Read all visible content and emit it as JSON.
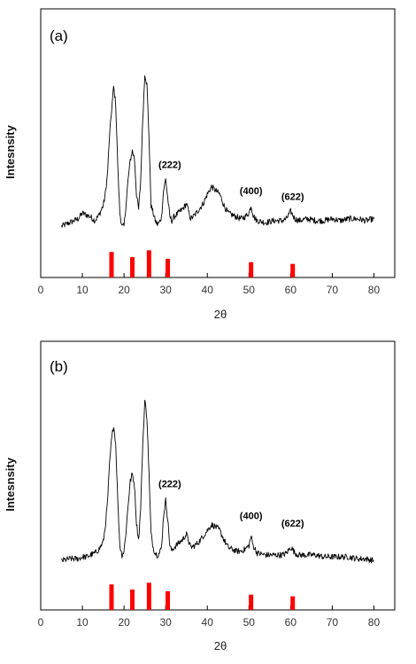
{
  "colors": {
    "trace": "#000000",
    "reference_bar": "#ff0000",
    "axis": "#000000",
    "background": "#ffffff"
  },
  "chart_data": [
    {
      "type": "line",
      "panel_label": "(a)",
      "xlabel": "2θ",
      "ylabel": "Intesnsity",
      "xlim": [
        0,
        85
      ],
      "ylim": [
        0,
        100
      ],
      "x_ticks": [
        0,
        10,
        20,
        30,
        40,
        50,
        60,
        70,
        80
      ],
      "y_ticks_shown": false,
      "grid": false,
      "series": [
        {
          "x": [
            5,
            7,
            9,
            10,
            11,
            12,
            13,
            14,
            15,
            15.5,
            16,
            16.5,
            17,
            17.5,
            18,
            18.5,
            19,
            19.5,
            20,
            20.5,
            21,
            21.5,
            22,
            22.5,
            23,
            23.5,
            24,
            24.5,
            25,
            25.5,
            26,
            26.5,
            27,
            27.5,
            28,
            28.5,
            29,
            29.5,
            30,
            30.5,
            31,
            31.5,
            32,
            33,
            34,
            35,
            36,
            37,
            38,
            39,
            40,
            41,
            42,
            43,
            44,
            45,
            46,
            47,
            48,
            49,
            50,
            50.5,
            51,
            51.5,
            52,
            54,
            56,
            58,
            59,
            60,
            60.5,
            61,
            62,
            64,
            66,
            68,
            70,
            72,
            74,
            76,
            78,
            80
          ],
          "values": [
            13,
            15,
            17,
            20,
            19,
            18,
            16,
            19,
            24,
            30,
            40,
            60,
            74,
            87,
            78,
            45,
            20,
            13,
            13,
            25,
            38,
            48,
            53,
            49,
            30,
            22,
            37,
            70,
            94,
            88,
            60,
            24,
            20,
            16,
            14,
            15,
            18,
            32,
            38,
            28,
            18,
            16,
            18,
            20,
            22,
            25,
            17,
            19,
            22,
            25,
            30,
            34,
            32,
            30,
            24,
            20,
            19,
            18,
            17,
            18,
            20,
            24,
            19,
            17,
            16,
            15,
            16,
            16,
            17,
            21,
            19,
            17,
            16,
            17,
            16,
            16,
            17,
            16,
            17,
            17,
            16,
            17
          ]
        }
      ],
      "reference_peaks": [
        {
          "x": 17,
          "height": 15
        },
        {
          "x": 22,
          "height": 12
        },
        {
          "x": 26,
          "height": 16
        },
        {
          "x": 30.5,
          "height": 11
        },
        {
          "x": 50.5,
          "height": 9
        },
        {
          "x": 60.5,
          "height": 8
        }
      ],
      "annotations": [
        {
          "text": "(222)",
          "x": 31,
          "y": 44
        },
        {
          "text": "(400)",
          "x": 50.5,
          "y": 30
        },
        {
          "text": "(622)",
          "x": 60.5,
          "y": 27
        }
      ]
    },
    {
      "type": "line",
      "panel_label": "(b)",
      "xlabel": "2θ",
      "ylabel": "Intesnsity",
      "xlim": [
        0,
        85
      ],
      "ylim": [
        0,
        100
      ],
      "x_ticks": [
        0,
        10,
        20,
        30,
        40,
        50,
        60,
        70,
        80
      ],
      "y_ticks_shown": false,
      "grid": false,
      "series": [
        {
          "x": [
            5,
            7,
            9,
            10,
            11,
            12,
            13,
            14,
            15,
            15.5,
            16,
            16.5,
            17,
            17.5,
            18,
            18.5,
            19,
            19.5,
            20,
            20.5,
            21,
            21.5,
            22,
            22.5,
            23,
            23.5,
            24,
            24.5,
            25,
            25.5,
            26,
            26.5,
            27,
            27.5,
            28,
            28.5,
            29,
            29.5,
            30,
            30.5,
            31,
            31.5,
            32,
            33,
            34,
            35,
            36,
            37,
            38,
            39,
            40,
            41,
            42,
            43,
            44,
            45,
            46,
            47,
            48,
            49,
            50,
            50.5,
            51,
            51.5,
            52,
            54,
            56,
            58,
            59,
            60,
            60.5,
            61,
            62,
            64,
            66,
            68,
            70,
            72,
            74,
            76,
            78,
            80
          ],
          "values": [
            12,
            13,
            13,
            14,
            14,
            15,
            16,
            18,
            22,
            30,
            42,
            62,
            76,
            84,
            74,
            44,
            20,
            15,
            17,
            28,
            42,
            54,
            58,
            52,
            32,
            23,
            40,
            74,
            97,
            88,
            58,
            26,
            19,
            16,
            15,
            16,
            19,
            36,
            44,
            34,
            20,
            17,
            19,
            21,
            23,
            26,
            19,
            20,
            22,
            25,
            28,
            31,
            30,
            28,
            23,
            19,
            18,
            17,
            17,
            18,
            20,
            25,
            20,
            18,
            16,
            15,
            15,
            15,
            16,
            19,
            18,
            16,
            15,
            15,
            15,
            14,
            14,
            14,
            14,
            13,
            13,
            12
          ]
        }
      ],
      "reference_peaks": [
        {
          "x": 17,
          "height": 15
        },
        {
          "x": 22,
          "height": 12
        },
        {
          "x": 26,
          "height": 16
        },
        {
          "x": 30.5,
          "height": 11
        },
        {
          "x": 50.5,
          "height": 9
        },
        {
          "x": 60.5,
          "height": 8
        }
      ],
      "annotations": [
        {
          "text": "(222)",
          "x": 31,
          "y": 51
        },
        {
          "text": "(400)",
          "x": 50.5,
          "y": 34
        },
        {
          "text": "(622)",
          "x": 60.5,
          "y": 30
        }
      ]
    }
  ]
}
